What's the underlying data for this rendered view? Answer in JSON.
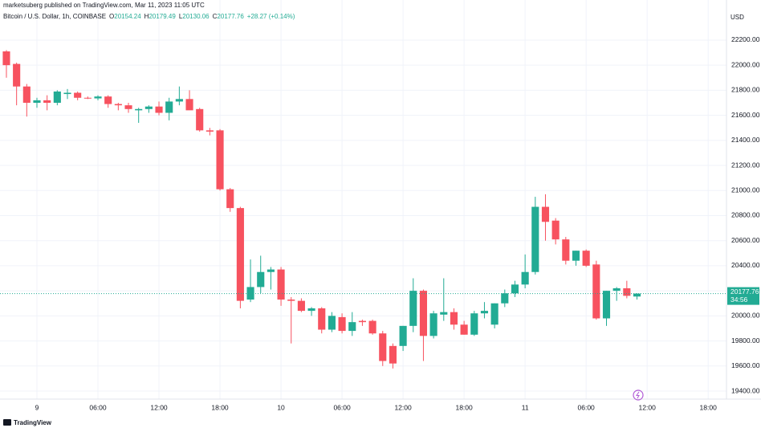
{
  "chart_data": {
    "type": "candlestick",
    "publisher": "marketsuberg published on TradingView.com, Mar 11, 2023 11:05 UTC",
    "title": "Bitcoin / U.S. Dollar, 1h, COINBASE",
    "ohlc_labels": [
      "O",
      "H",
      "L",
      "C"
    ],
    "change": "+28.27 (+0.14%)",
    "currency": "USD",
    "countdown": "34:56",
    "brand": "TradingView",
    "up_color": "#22ab94",
    "down_color": "#f7525f",
    "grid": true,
    "x": [
      -3,
      -2,
      -1,
      0,
      1,
      2,
      3,
      4,
      5,
      6,
      7,
      8,
      9,
      10,
      11,
      12,
      13,
      14,
      15,
      16,
      17,
      18,
      19,
      20,
      21,
      22,
      23,
      24,
      25,
      26,
      27,
      28,
      29,
      30,
      31,
      32,
      33,
      34,
      35,
      36,
      37,
      38,
      39,
      40,
      41,
      42,
      43,
      44,
      45,
      46,
      47,
      48,
      49,
      50,
      51,
      52,
      53,
      54,
      55,
      56,
      57,
      58,
      59
    ],
    "open": [
      22110,
      22010,
      21830,
      21700,
      21720,
      21700,
      21770,
      21780,
      21740,
      21735,
      21750,
      21690,
      21680,
      21640,
      21650,
      21670,
      21620,
      21710,
      21730,
      21650,
      21480,
      21480,
      21010,
      20860,
      20130,
      20230,
      20350,
      20370,
      20130,
      20120,
      20040,
      20060,
      19890,
      19990,
      19880,
      19960,
      19960,
      19860,
      19760,
      19760,
      19920,
      20200,
      19840,
      20010,
      20030,
      19930,
      19850,
      20020,
      19930,
      20100,
      20180,
      20250,
      20350,
      20870,
      20760,
      20610,
      20440,
      20520,
      20410,
      19980,
      20200,
      20220,
      20154.24
    ],
    "high": [
      22120,
      22020,
      21850,
      21740,
      21760,
      21800,
      21810,
      21790,
      21750,
      21760,
      21760,
      21700,
      21700,
      21660,
      21680,
      21710,
      21740,
      21830,
      21800,
      21660,
      21500,
      21490,
      21020,
      20870,
      20450,
      20480,
      20390,
      20390,
      20150,
      20140,
      20070,
      20070,
      20030,
      20020,
      20030,
      19970,
      19970,
      19880,
      19780,
      19920,
      20300,
      20210,
      20040,
      20300,
      20060,
      19960,
      20040,
      20110,
      20100,
      20210,
      20280,
      20490,
      20950,
      20970,
      20780,
      20630,
      20520,
      20530,
      20440,
      20200,
      20230,
      20280,
      20179.49
    ],
    "low": [
      21900,
      21680,
      21590,
      21660,
      21640,
      21680,
      21730,
      21720,
      21730,
      21720,
      21660,
      21640,
      21620,
      21540,
      21620,
      21600,
      21560,
      21680,
      21650,
      21470,
      21440,
      21000,
      20830,
      20060,
      20110,
      20180,
      20210,
      20080,
      19780,
      20030,
      20000,
      19860,
      19870,
      19860,
      19840,
      19920,
      19850,
      19600,
      19580,
      19720,
      19870,
      19640,
      19820,
      19960,
      19890,
      19850,
      19840,
      19980,
      19900,
      20070,
      20150,
      20220,
      20330,
      20600,
      20570,
      20410,
      20400,
      20390,
      19970,
      19920,
      20120,
      20140,
      20130.06
    ],
    "close": [
      22000,
      21830,
      21700,
      21720,
      21700,
      21790,
      21780,
      21740,
      21735,
      21750,
      21690,
      21680,
      21650,
      21650,
      21670,
      21620,
      21710,
      21730,
      21640,
      21480,
      21470,
      21010,
      20860,
      20120,
      20230,
      20350,
      20370,
      20130,
      20120,
      20040,
      20060,
      19890,
      20000,
      19880,
      19950,
      19950,
      19860,
      19640,
      19620,
      19920,
      20200,
      19840,
      20020,
      20030,
      19930,
      19850,
      20020,
      20040,
      20100,
      20180,
      20250,
      20350,
      20870,
      20750,
      20610,
      20440,
      20520,
      20400,
      19980,
      20200,
      20220,
      20160,
      20177.76
    ],
    "xlim": [
      -3.63,
      67.8
    ],
    "xticks": [
      {
        "value": 0,
        "label": "9"
      },
      {
        "value": 6,
        "label": "06:00"
      },
      {
        "value": 12,
        "label": "12:00"
      },
      {
        "value": 18,
        "label": "18:00"
      },
      {
        "value": 24,
        "label": "10"
      },
      {
        "value": 30,
        "label": "06:00"
      },
      {
        "value": 36,
        "label": "12:00"
      },
      {
        "value": 42,
        "label": "18:00"
      },
      {
        "value": 48,
        "label": "11"
      },
      {
        "value": 54,
        "label": "06:00"
      },
      {
        "value": 60,
        "label": "12:00"
      },
      {
        "value": 66,
        "label": "18:00"
      }
    ],
    "ylim": [
      19336,
      22520
    ],
    "yticks": [
      {
        "value": 19400,
        "label": "19400.00"
      },
      {
        "value": 19600,
        "label": "19600.00"
      },
      {
        "value": 19800,
        "label": "19800.00"
      },
      {
        "value": 20000,
        "label": "20000.00"
      },
      {
        "value": 20200,
        "label": "20200.00"
      },
      {
        "value": 20400,
        "label": "20400.00"
      },
      {
        "value": 20600,
        "label": "20600.00"
      },
      {
        "value": 20800,
        "label": "20800.00"
      },
      {
        "value": 21000,
        "label": "21000.00"
      },
      {
        "value": 21200,
        "label": "21200.00"
      },
      {
        "value": 21400,
        "label": "21400.00"
      },
      {
        "value": 21600,
        "label": "21600.00"
      },
      {
        "value": 21800,
        "label": "21800.00"
      },
      {
        "value": 22000,
        "label": "22000.00"
      },
      {
        "value": 22200,
        "label": "22200.00"
      }
    ]
  }
}
